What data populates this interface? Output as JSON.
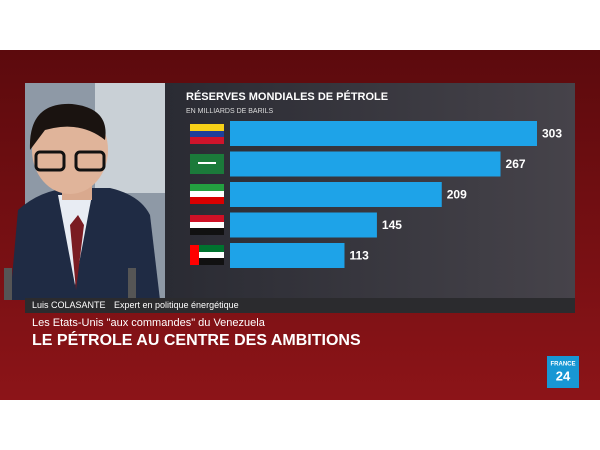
{
  "chart_data": {
    "type": "hbar",
    "title": "RÉSERVES MONDIALES DE PÉTROLE",
    "subtitle": "EN MILLIARDS DE BARILS",
    "values": [
      303,
      267,
      209,
      145,
      113
    ],
    "color": "#1ea3e8"
  },
  "lower_third": {
    "name": "Luis COLASANTE",
    "role": "Expert en politique énergétique",
    "kicker": "Les Etats-Unis \"aux commandes\" du Venezuela",
    "headline": "LE PÉTROLE AU CENTRE DES AMBITIONS"
  },
  "logo": {
    "line1": "FRANCE",
    "line2": "24"
  }
}
